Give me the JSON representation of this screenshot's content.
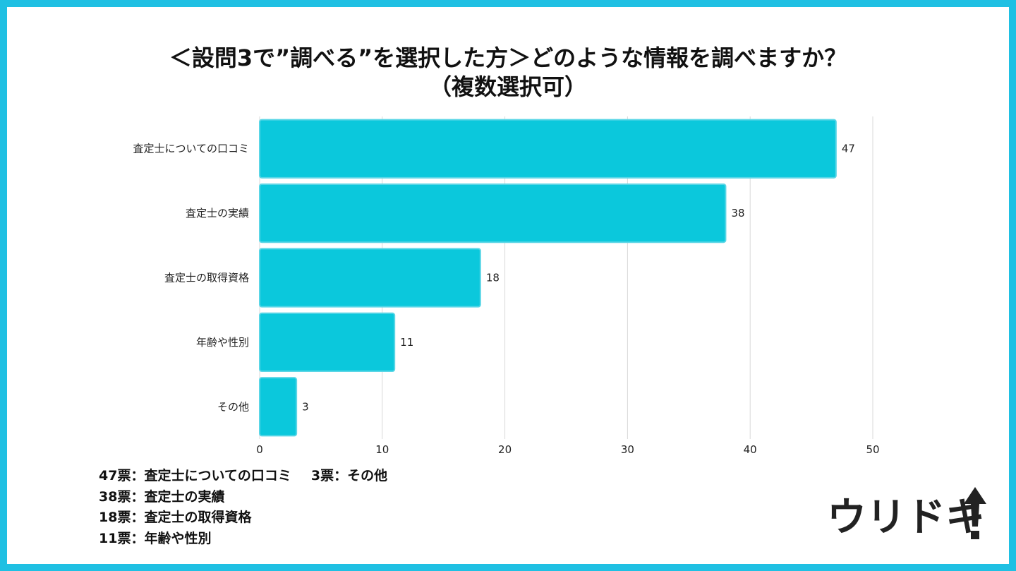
{
  "title": {
    "line1": "＜設問3で”調べる”を選択した方＞どのような情報を調べますか？",
    "line2": "（複数選択可）"
  },
  "colors": {
    "frame": "#1fc0e3",
    "bar_fill": "#0bc8dc",
    "bar_stroke": "#5ad6e6",
    "grid": "#d9d9d9"
  },
  "chart_data": {
    "type": "bar",
    "orientation": "horizontal",
    "categories": [
      "査定士についての口コミ",
      "査定士の実績",
      "査定士の取得資格",
      "年齢や性別",
      "その他"
    ],
    "values": [
      47,
      38,
      18,
      11,
      3
    ],
    "xlim": [
      0,
      50
    ],
    "xticks": [
      0,
      10,
      20,
      30,
      40,
      50
    ],
    "grid": true
  },
  "summary": {
    "rows": [
      "47票：査定士についての口コミ",
      "38票：査定士の実績",
      "18票：査定士の取得資格",
      "11票：年齢や性別"
    ],
    "extra": "3票：その他"
  },
  "logo": {
    "text": "ウリドキ",
    "icon": "up-arrow-icon"
  }
}
